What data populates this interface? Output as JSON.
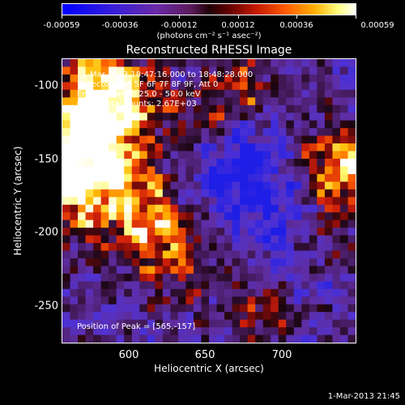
{
  "colorbar": {
    "ticks": [
      "-0.00059",
      "-0.00036",
      "-0.00012",
      "0.00012",
      "0.00036",
      "0.00059"
    ],
    "units": "(photons cm⁻² s⁻¹ asec⁻²)"
  },
  "title": "Reconstructed RHESSI Image",
  "annotations": {
    "time": "1-Mar-2013 18:47:16.000 to 18:48:28.000",
    "detectors": "Detectors: 3F 5F 6F 7F 8F 9F, Att 0",
    "energy": "Energy Range: 25.0 - 50.0 keV",
    "clean": "Clean     Total counts: 2.67E+03",
    "peak": "Position of Peak = [565,-157]"
  },
  "axes": {
    "xlabel": "Heliocentric X (arcsec)",
    "ylabel": "Heliocentric Y (arcsec)",
    "xticks": [
      "600",
      "650",
      "700"
    ],
    "yticks": [
      "-100",
      "-150",
      "-200",
      "-250"
    ]
  },
  "footer": "1-Mar-2013 21:45"
}
